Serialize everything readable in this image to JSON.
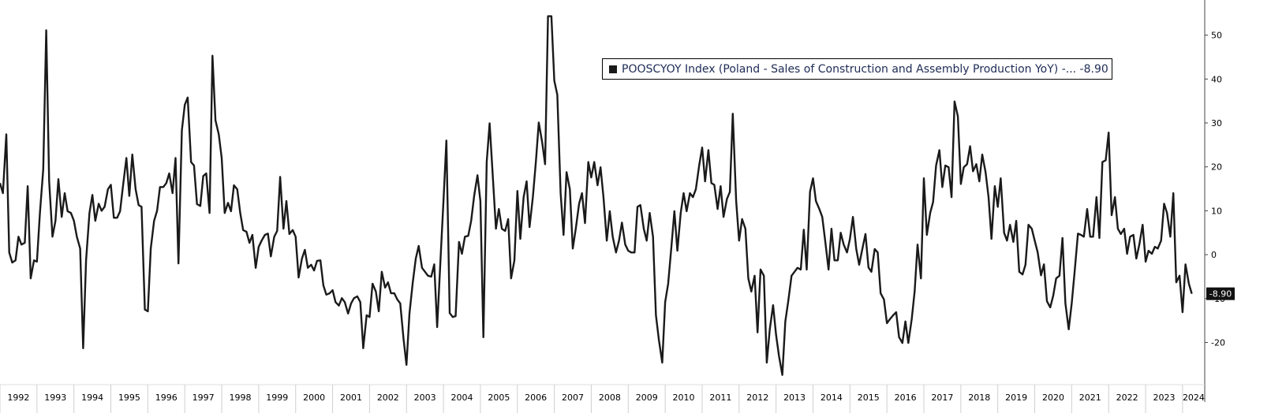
{
  "chart_data": {
    "type": "line",
    "xlim": [
      1992,
      2024.6
    ],
    "xticks": [
      1992,
      1993,
      1994,
      1995,
      1996,
      1997,
      1998,
      1999,
      2000,
      2001,
      2002,
      2003,
      2004,
      2005,
      2006,
      2007,
      2008,
      2009,
      2010,
      2011,
      2012,
      2013,
      2014,
      2015,
      2016,
      2017,
      2018,
      2019,
      2020,
      2021,
      2022,
      2023,
      2024
    ],
    "ylim": [
      -29.6,
      58
    ],
    "yticks": [
      -20,
      -10,
      0,
      10,
      20,
      30,
      40,
      50
    ],
    "annotations": [
      {
        "label": "-8.90",
        "value": -8.9
      }
    ],
    "x": [
      1992,
      1992.08,
      1992.17,
      1992.25,
      1992.33,
      1992.42,
      1992.5,
      1992.58,
      1992.67,
      1992.75,
      1992.83,
      1992.92,
      1993,
      1993.08,
      1993.17,
      1993.25,
      1993.33,
      1993.42,
      1993.5,
      1993.58,
      1993.67,
      1993.75,
      1993.83,
      1993.92,
      1994,
      1994.08,
      1994.17,
      1994.25,
      1994.33,
      1994.42,
      1994.5,
      1994.58,
      1994.67,
      1994.75,
      1994.83,
      1994.92,
      1995,
      1995.08,
      1995.17,
      1995.25,
      1995.33,
      1995.42,
      1995.5,
      1995.58,
      1995.67,
      1995.75,
      1995.83,
      1995.92,
      1996,
      1996.08,
      1996.17,
      1996.25,
      1996.33,
      1996.42,
      1996.5,
      1996.58,
      1996.67,
      1996.75,
      1996.83,
      1996.92,
      1997,
      1997.08,
      1997.17,
      1997.25,
      1997.33,
      1997.42,
      1997.5,
      1997.58,
      1997.67,
      1997.75,
      1997.83,
      1997.92,
      1998,
      1998.08,
      1998.17,
      1998.25,
      1998.33,
      1998.42,
      1998.5,
      1998.58,
      1998.67,
      1998.75,
      1998.83,
      1998.92,
      1999,
      1999.08,
      1999.17,
      1999.25,
      1999.33,
      1999.42,
      1999.5,
      1999.58,
      1999.67,
      1999.75,
      1999.83,
      1999.92,
      2000,
      2000.08,
      2000.17,
      2000.25,
      2000.33,
      2000.42,
      2000.5,
      2000.58,
      2000.67,
      2000.75,
      2000.83,
      2000.92,
      2001,
      2001.08,
      2001.17,
      2001.25,
      2001.33,
      2001.42,
      2001.5,
      2001.58,
      2001.67,
      2001.75,
      2001.83,
      2001.92,
      2002,
      2002.08,
      2002.17,
      2002.25,
      2002.33,
      2002.42,
      2002.5,
      2002.58,
      2002.67,
      2002.75,
      2002.83,
      2002.92,
      2003,
      2003.08,
      2003.17,
      2003.25,
      2003.33,
      2003.42,
      2003.5,
      2003.58,
      2003.67,
      2003.75,
      2003.83,
      2003.92,
      2004,
      2004.08,
      2004.17,
      2004.25,
      2004.33,
      2004.42,
      2004.5,
      2004.58,
      2004.67,
      2004.75,
      2004.83,
      2004.92,
      2005,
      2005.08,
      2005.17,
      2005.25,
      2005.33,
      2005.42,
      2005.5,
      2005.58,
      2005.67,
      2005.75,
      2005.83,
      2005.92,
      2006,
      2006.08,
      2006.17,
      2006.25,
      2006.33,
      2006.42,
      2006.5,
      2006.58,
      2006.67,
      2006.75,
      2006.83,
      2006.92,
      2007,
      2007.08,
      2007.17,
      2007.25,
      2007.33,
      2007.42,
      2007.5,
      2007.58,
      2007.67,
      2007.75,
      2007.83,
      2007.92,
      2008,
      2008.08,
      2008.17,
      2008.25,
      2008.33,
      2008.42,
      2008.5,
      2008.58,
      2008.67,
      2008.75,
      2008.83,
      2008.92,
      2009,
      2009.08,
      2009.17,
      2009.25,
      2009.33,
      2009.42,
      2009.5,
      2009.58,
      2009.67,
      2009.75,
      2009.83,
      2009.92,
      2010,
      2010.08,
      2010.17,
      2010.25,
      2010.33,
      2010.42,
      2010.5,
      2010.58,
      2010.67,
      2010.75,
      2010.83,
      2010.92,
      2011,
      2011.08,
      2011.17,
      2011.25,
      2011.33,
      2011.42,
      2011.5,
      2011.58,
      2011.67,
      2011.75,
      2011.83,
      2011.92,
      2012,
      2012.08,
      2012.17,
      2012.25,
      2012.33,
      2012.42,
      2012.5,
      2012.58,
      2012.67,
      2012.75,
      2012.83,
      2012.92,
      2013,
      2013.08,
      2013.17,
      2013.25,
      2013.33,
      2013.42,
      2013.5,
      2013.58,
      2013.67,
      2013.75,
      2013.83,
      2013.92,
      2014,
      2014.08,
      2014.17,
      2014.25,
      2014.33,
      2014.42,
      2014.5,
      2014.58,
      2014.67,
      2014.75,
      2014.83,
      2014.92,
      2015,
      2015.08,
      2015.17,
      2015.25,
      2015.33,
      2015.42,
      2015.5,
      2015.58,
      2015.67,
      2015.75,
      2015.83,
      2015.92,
      2016,
      2016.08,
      2016.17,
      2016.25,
      2016.33,
      2016.42,
      2016.5,
      2016.58,
      2016.67,
      2016.75,
      2016.83,
      2016.92,
      2017,
      2017.08,
      2017.17,
      2017.25,
      2017.33,
      2017.42,
      2017.5,
      2017.58,
      2017.67,
      2017.75,
      2017.83,
      2017.92,
      2018,
      2018.08,
      2018.17,
      2018.25,
      2018.33,
      2018.42,
      2018.5,
      2018.58,
      2018.67,
      2018.75,
      2018.83,
      2018.92,
      2019,
      2019.08,
      2019.17,
      2019.25,
      2019.33,
      2019.42,
      2019.5,
      2019.58,
      2019.67,
      2019.75,
      2019.83,
      2019.92,
      2020,
      2020.08,
      2020.17,
      2020.25,
      2020.33,
      2020.42,
      2020.5,
      2020.58,
      2020.67,
      2020.75,
      2020.83,
      2020.92,
      2021,
      2021.08,
      2021.17,
      2021.25,
      2021.33,
      2021.42,
      2021.5,
      2021.58,
      2021.67,
      2021.75,
      2021.83,
      2021.92,
      2022,
      2022.08,
      2022.17,
      2022.25,
      2022.33,
      2022.42,
      2022.5,
      2022.58,
      2022.67,
      2022.75,
      2022.83,
      2022.92,
      2023,
      2023.08,
      2023.17,
      2023.25,
      2023.33,
      2023.42,
      2023.5,
      2023.58,
      2023.67,
      2023.75,
      2023.83,
      2023.92,
      2024,
      2024.08,
      2024.17,
      2024.25
    ],
    "series": [
      {
        "name": "POOSCYOY Index (Poland - Sales of Construction and Assembly Production YoY) -... -8.90",
        "color": "#1a1a1a",
        "values": [
          16.3,
          14.0,
          27.4,
          0.5,
          -1.8,
          -1.3,
          4.1,
          2.3,
          2.7,
          15.6,
          -5.4,
          -1.3,
          -1.6,
          9.5,
          19.4,
          51.1,
          16.7,
          4.1,
          7.7,
          17.2,
          8.6,
          14.0,
          9.9,
          9.5,
          7.7,
          4.1,
          1.4,
          -21.3,
          -1.3,
          9.5,
          13.6,
          7.7,
          11.6,
          10.0,
          10.9,
          14.9,
          15.9,
          8.4,
          8.4,
          9.9,
          15.8,
          22.0,
          13.4,
          22.8,
          14.9,
          11.3,
          10.9,
          -12.5,
          -12.9,
          1.4,
          7.7,
          10.0,
          15.4,
          15.4,
          16.3,
          18.5,
          14.0,
          22.0,
          -2.0,
          28.3,
          34.1,
          35.8,
          21.1,
          20.3,
          11.5,
          11.1,
          17.9,
          18.5,
          9.5,
          45.3,
          30.6,
          27.4,
          22.0,
          9.5,
          11.8,
          9.9,
          15.8,
          14.9,
          9.5,
          5.6,
          5.2,
          2.7,
          4.5,
          -3.0,
          1.8,
          3.2,
          4.5,
          4.8,
          -0.4,
          4.1,
          5.4,
          17.7,
          5.9,
          12.2,
          4.7,
          5.6,
          4.1,
          -5.2,
          -0.9,
          1.1,
          -3.0,
          -2.3,
          -3.6,
          -1.4,
          -1.3,
          -7.0,
          -9.1,
          -8.8,
          -8.1,
          -10.8,
          -11.6,
          -9.9,
          -10.8,
          -13.4,
          -11.1,
          -9.9,
          -9.5,
          -10.8,
          -21.3,
          -13.8,
          -14.2,
          -6.6,
          -8.4,
          -12.9,
          -3.9,
          -7.5,
          -6.3,
          -8.8,
          -8.8,
          -10.2,
          -11.1,
          -19.2,
          -25.1,
          -13.4,
          -6.3,
          -0.9,
          2.0,
          -3.0,
          -3.9,
          -4.8,
          -5.0,
          -2.2,
          -16.5,
          -1.3,
          12.2,
          26.0,
          -13.3,
          -14.2,
          -14.0,
          2.9,
          0.2,
          4.1,
          4.3,
          7.7,
          13.4,
          18.1,
          12.2,
          -18.8,
          21.1,
          29.9,
          18.5,
          5.9,
          10.4,
          5.9,
          5.4,
          8.1,
          -5.4,
          -1.3,
          14.5,
          3.6,
          13.1,
          16.7,
          6.3,
          13.1,
          21.1,
          30.1,
          25.6,
          20.6,
          54.3,
          54.3,
          39.6,
          36.4,
          14.0,
          4.5,
          18.8,
          14.9,
          1.4,
          5.9,
          11.6,
          14.0,
          7.2,
          21.1,
          17.6,
          21.1,
          15.8,
          19.9,
          13.1,
          3.2,
          9.9,
          4.1,
          0.5,
          3.2,
          7.3,
          2.3,
          0.9,
          0.5,
          0.5,
          10.9,
          11.3,
          5.9,
          3.2,
          9.5,
          4.1,
          -13.8,
          -19.5,
          -24.6,
          -10.8,
          -6.6,
          2.0,
          9.9,
          0.9,
          9.5,
          14.0,
          9.9,
          14.0,
          13.1,
          14.9,
          20.3,
          24.4,
          16.7,
          23.8,
          16.3,
          15.9,
          10.4,
          15.6,
          8.6,
          12.7,
          14.3,
          32.1,
          12.2,
          3.2,
          8.1,
          5.9,
          -5.4,
          -8.4,
          -4.8,
          -17.7,
          -3.4,
          -4.8,
          -24.6,
          -17.0,
          -11.5,
          -18.3,
          -23.1,
          -27.4,
          -15.2,
          -10.6,
          -4.8,
          -3.9,
          -3.0,
          -3.4,
          5.7,
          -3.4,
          14.3,
          17.4,
          12.2,
          10.4,
          8.6,
          3.2,
          -3.4,
          5.9,
          -1.3,
          -1.3,
          5.0,
          2.3,
          0.5,
          3.6,
          8.6,
          1.3,
          -2.3,
          1.1,
          4.7,
          -2.9,
          -3.9,
          1.3,
          0.5,
          -8.8,
          -10.2,
          -15.6,
          -14.7,
          -13.8,
          -13.1,
          -18.8,
          -20.1,
          -15.2,
          -20.1,
          -14.7,
          -8.4,
          2.3,
          -5.4,
          17.4,
          4.5,
          9.5,
          12.0,
          20.3,
          23.8,
          15.4,
          20.3,
          19.9,
          13.1,
          34.9,
          31.5,
          16.1,
          19.9,
          20.6,
          24.7,
          19.0,
          20.6,
          16.7,
          22.8,
          18.8,
          13.1,
          3.6,
          15.6,
          10.9,
          17.4,
          5.0,
          3.2,
          6.8,
          2.9,
          7.7,
          -3.9,
          -4.5,
          -2.3,
          6.8,
          5.9,
          3.2,
          0.5,
          -4.7,
          -2.2,
          -10.6,
          -12.0,
          -9.3,
          -5.4,
          -4.8,
          3.8,
          -11.1,
          -17.0,
          -11.1,
          -3.9,
          4.8,
          4.5,
          4.1,
          10.4,
          4.1,
          4.1,
          13.1,
          3.8,
          21.1,
          21.5,
          27.8,
          9.0,
          13.1,
          5.9,
          4.7,
          5.9,
          0.2,
          4.1,
          4.5,
          -0.9,
          2.3,
          6.8,
          -1.6,
          0.9,
          0.2,
          1.8,
          1.4,
          3.2,
          11.6,
          9.5,
          4.1,
          14.0,
          -6.3,
          -4.8,
          -13.1,
          -2.2,
          -6.6,
          -8.9
        ]
      }
    ]
  }
}
